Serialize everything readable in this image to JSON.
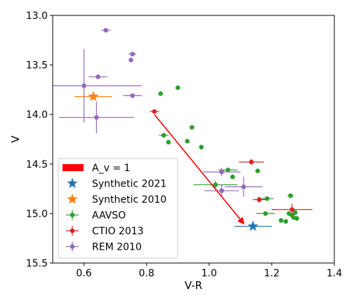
{
  "chart_data": {
    "type": "scatter",
    "xlabel": "V-R",
    "ylabel": "V",
    "xlim": [
      0.5,
      1.4
    ],
    "ylim": [
      15.5,
      13.0
    ],
    "y_inverted": true,
    "x_ticks": [
      "0.6",
      "0.8",
      "1.0",
      "1.2",
      "1.4"
    ],
    "x_tick_values": [
      0.6,
      0.8,
      1.0,
      1.2,
      1.4
    ],
    "y_ticks": [
      "13.0",
      "13.5",
      "14.0",
      "14.5",
      "15.0",
      "15.5"
    ],
    "y_tick_values": [
      13.0,
      13.5,
      14.0,
      14.5,
      15.0,
      15.5
    ],
    "grid": false,
    "legend_placement": "lower-left",
    "extinction_vector": {
      "name": "A_v = 1",
      "color": "#ff0000",
      "from": [
        0.825,
        14.0
      ],
      "to": [
        1.11,
        15.1
      ]
    },
    "series": [
      {
        "name": "Synthetic 2021",
        "marker": "star",
        "color": "#1f77b4",
        "points": [
          {
            "x": 1.14,
            "y": 15.13,
            "xerr": 0.06,
            "yerr": 0.0
          }
        ]
      },
      {
        "name": "Synthetic 2010",
        "marker": "star",
        "color": "#ff7f0e",
        "points": [
          {
            "x": 0.63,
            "y": 13.82,
            "xerr": 0.06,
            "yerr": 0.0
          }
        ]
      },
      {
        "name": "AAVSO",
        "marker": "circle",
        "color": "#2ca02c",
        "points": [
          {
            "x": 0.845,
            "y": 13.79,
            "xerr": 0.0,
            "yerr": 0.0
          },
          {
            "x": 0.9,
            "y": 13.73,
            "xerr": 0.0,
            "yerr": 0.0
          },
          {
            "x": 0.855,
            "y": 14.21,
            "xerr": 0.015,
            "yerr": 0.02
          },
          {
            "x": 0.87,
            "y": 14.28,
            "xerr": 0.0,
            "yerr": 0.0
          },
          {
            "x": 0.93,
            "y": 14.27,
            "xerr": 0.0,
            "yerr": 0.0
          },
          {
            "x": 0.945,
            "y": 14.13,
            "xerr": 0.0,
            "yerr": 0.0
          },
          {
            "x": 0.975,
            "y": 14.33,
            "xerr": 0.0,
            "yerr": 0.0
          },
          {
            "x": 1.06,
            "y": 14.56,
            "xerr": 0.03,
            "yerr": 0.02
          },
          {
            "x": 1.075,
            "y": 14.63,
            "xerr": 0.0,
            "yerr": 0.0
          },
          {
            "x": 1.155,
            "y": 14.57,
            "xerr": 0.0,
            "yerr": 0.0
          },
          {
            "x": 1.02,
            "y": 14.71,
            "xerr": 0.07,
            "yerr": 0.04
          },
          {
            "x": 1.185,
            "y": 14.85,
            "xerr": 0.02,
            "yerr": 0.02
          },
          {
            "x": 1.26,
            "y": 14.82,
            "xerr": 0.01,
            "yerr": 0.02
          },
          {
            "x": 1.18,
            "y": 15.0,
            "xerr": 0.03,
            "yerr": 0.02
          },
          {
            "x": 1.23,
            "y": 15.07,
            "xerr": 0.0,
            "yerr": 0.0
          },
          {
            "x": 1.245,
            "y": 15.08,
            "xerr": 0.0,
            "yerr": 0.0
          },
          {
            "x": 1.255,
            "y": 15.0,
            "xerr": 0.0,
            "yerr": 0.0
          },
          {
            "x": 1.265,
            "y": 15.02,
            "xerr": 0.0,
            "yerr": 0.0
          },
          {
            "x": 1.27,
            "y": 15.04,
            "xerr": 0.0,
            "yerr": 0.0
          },
          {
            "x": 1.28,
            "y": 15.05,
            "xerr": 0.0,
            "yerr": 0.0
          },
          {
            "x": 1.275,
            "y": 14.99,
            "xerr": 0.0,
            "yerr": 0.0
          }
        ]
      },
      {
        "name": "CTIO 2013",
        "marker": "circle",
        "color": "#d62728",
        "points": [
          {
            "x": 0.825,
            "y": 13.97,
            "xerr": 0.015,
            "yerr": 0.0
          },
          {
            "x": 1.135,
            "y": 14.48,
            "xerr": 0.04,
            "yerr": 0.03
          },
          {
            "x": 1.16,
            "y": 14.86,
            "xerr": 0.02,
            "yerr": 0.03
          },
          {
            "x": 1.265,
            "y": 14.96,
            "xerr": 0.065,
            "yerr": 0.06
          }
        ]
      },
      {
        "name": "REM 2010",
        "marker": "circle",
        "color": "#9467bd",
        "points": [
          {
            "x": 0.67,
            "y": 13.15,
            "xerr": 0.015,
            "yerr": 0.0
          },
          {
            "x": 0.755,
            "y": 13.39,
            "xerr": 0.012,
            "yerr": 0.0
          },
          {
            "x": 0.75,
            "y": 13.45,
            "xerr": 0.0,
            "yerr": 0.0
          },
          {
            "x": 0.645,
            "y": 13.62,
            "xerr": 0.03,
            "yerr": 0.0
          },
          {
            "x": 0.6,
            "y": 13.71,
            "xerr": 0.185,
            "yerr": 0.37
          },
          {
            "x": 0.755,
            "y": 13.81,
            "xerr": 0.03,
            "yerr": 0.0
          },
          {
            "x": 0.64,
            "y": 14.03,
            "xerr": 0.12,
            "yerr": 0.16
          },
          {
            "x": 1.04,
            "y": 14.58,
            "xerr": 0.06,
            "yerr": 0.04
          },
          {
            "x": 1.04,
            "y": 14.77,
            "xerr": 0.055,
            "yerr": 0.06
          },
          {
            "x": 1.11,
            "y": 14.73,
            "xerr": 0.06,
            "yerr": 0.1
          }
        ]
      }
    ]
  }
}
